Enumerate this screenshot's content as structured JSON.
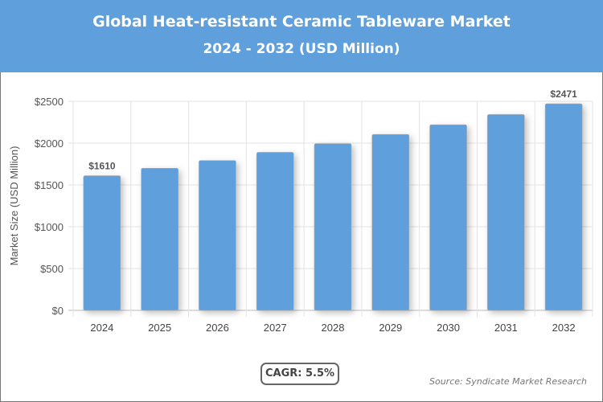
{
  "header": {
    "title": "Global Heat-resistant Ceramic Tableware Market",
    "subtitle": "2024 - 2032 (USD Million)"
  },
  "chart_data": {
    "type": "bar",
    "categories": [
      "2024",
      "2025",
      "2026",
      "2027",
      "2028",
      "2029",
      "2030",
      "2031",
      "2032"
    ],
    "values": [
      1610,
      1699,
      1792,
      1890,
      1994,
      2104,
      2220,
      2342,
      2471
    ],
    "data_labels": {
      "0": "$1610",
      "8": "$2471"
    },
    "ylabel": "Market Size (USD Million)",
    "xlabel": "",
    "ylim": [
      0,
      2500
    ],
    "yticks": [
      0,
      500,
      1000,
      1500,
      2000,
      2500
    ],
    "ytick_labels": [
      "$0",
      "$500",
      "$1000",
      "$1500",
      "$2000",
      "$2500"
    ],
    "grid": true,
    "bar_color": "#5e9fdc"
  },
  "footer": {
    "cagr": "CAGR: 5.5%",
    "source": "Source: Syndicate Market Research"
  }
}
